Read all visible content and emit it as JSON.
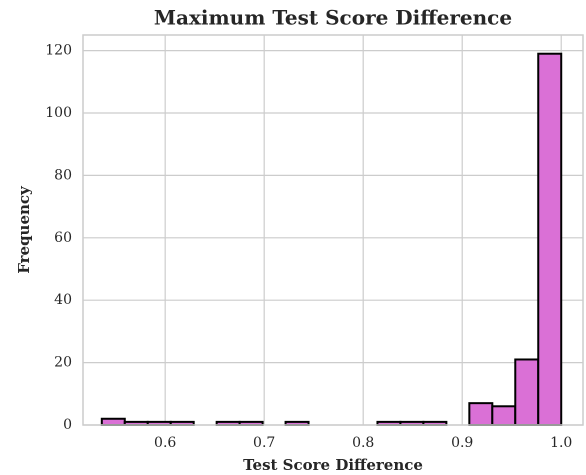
{
  "chart_data": {
    "type": "histogram",
    "title": "Maximum Test Score Difference",
    "x_label": "Test Score Difference",
    "y_label": "Frequency",
    "bins": [
      0.536,
      0.5592,
      0.5824,
      0.6056,
      0.6288,
      0.652,
      0.6752,
      0.6984,
      0.7216,
      0.7448,
      0.768,
      0.7912,
      0.8144,
      0.8376,
      0.8608,
      0.884,
      0.9072,
      0.9304,
      0.9536,
      0.9768,
      1.0
    ],
    "counts": [
      2,
      1,
      1,
      1,
      0,
      1,
      1,
      0,
      1,
      0,
      0,
      0,
      1,
      1,
      1,
      0,
      7,
      6,
      21,
      119
    ],
    "color": "#da70d6",
    "edgecolor": "#000000",
    "xlim": [
      0.517,
      1.022
    ],
    "xticks": [
      0.6,
      0.7,
      0.8,
      0.9,
      {
        "value": 1.0,
        "label": "1.0"
      }
    ],
    "ylim": [
      0,
      125
    ],
    "yticks": [
      0,
      20,
      40,
      60,
      80,
      100,
      120
    ],
    "grid": true
  }
}
